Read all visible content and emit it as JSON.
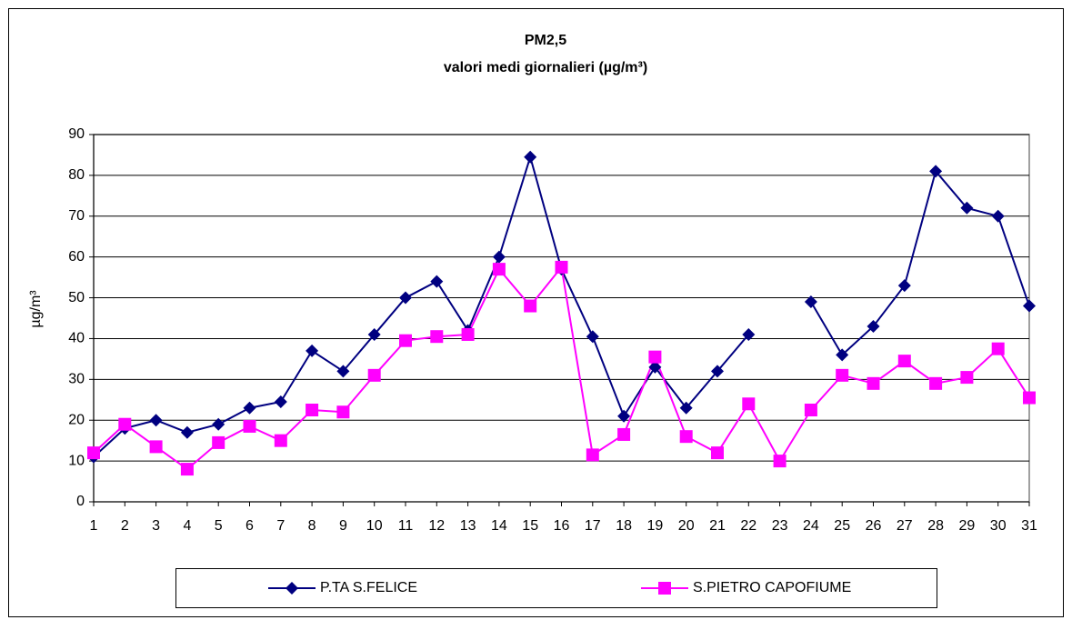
{
  "chart_data": {
    "type": "line",
    "title": "PM2,5",
    "subtitle": "valori medi giornalieri (µg/m³)",
    "y_label": "µg/m³",
    "categories": [
      "1",
      "2",
      "3",
      "4",
      "5",
      "6",
      "7",
      "8",
      "9",
      "10",
      "11",
      "12",
      "13",
      "14",
      "15",
      "16",
      "17",
      "18",
      "19",
      "20",
      "21",
      "22",
      "23",
      "24",
      "25",
      "26",
      "27",
      "28",
      "29",
      "30",
      "31"
    ],
    "series": [
      {
        "name": "P.TA S.FELICE",
        "color": "#000080",
        "marker": "diamond",
        "values": [
          11,
          18,
          20,
          17,
          19,
          23,
          24.5,
          37,
          32,
          41,
          50,
          54,
          42,
          60,
          84.5,
          57,
          40.5,
          21,
          33,
          23,
          32,
          41,
          null,
          49,
          36,
          43,
          53,
          81,
          72,
          70,
          48
        ]
      },
      {
        "name": "S.PIETRO CAPOFIUME",
        "color": "#ff00ff",
        "marker": "square",
        "values": [
          12,
          19,
          13.5,
          8,
          14.5,
          18.5,
          15,
          22.5,
          22,
          31,
          39.5,
          40.5,
          41,
          57,
          48,
          57.5,
          11.5,
          16.5,
          35.5,
          16,
          12,
          24,
          10,
          22.5,
          31,
          29,
          34.5,
          29,
          30.5,
          37.5,
          25.5
        ]
      }
    ],
    "ylim": [
      0,
      90
    ],
    "yticks": [
      0,
      10,
      20,
      30,
      40,
      50,
      60,
      70,
      80,
      90
    ],
    "grid": true,
    "legend": "bottom"
  }
}
